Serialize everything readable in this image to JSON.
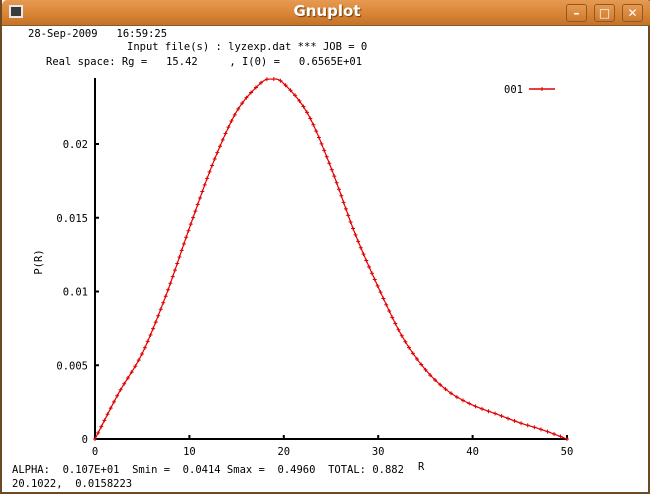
{
  "window": {
    "title": "Gnuplot",
    "buttons": {
      "minimize": "–",
      "maximize": "□",
      "close": "✕"
    }
  },
  "header": {
    "line1": "28-Sep-2009   16:59:25",
    "line2": "Input file(s) : lyzexp.dat *** JOB = 0",
    "line3": "Real space: Rg =   15.42     , I(0) =   0.6565E+01"
  },
  "footer": {
    "line1": "ALPHA:  0.107E+01  Smin =  0.0414 Smax =  0.4960  TOTAL: 0.882",
    "coords": "20.1022,  0.0158223"
  },
  "colors": {
    "series": "#e00000",
    "axis": "#000000",
    "titlebar": "#d98535"
  },
  "chart_data": {
    "type": "line",
    "title": "",
    "xlabel": "R",
    "ylabel": "P(R)",
    "xlim": [
      0,
      50
    ],
    "ylim": [
      0,
      0.025
    ],
    "xticks": [
      "0",
      "10",
      "20",
      "30",
      "40",
      "50"
    ],
    "yticks": [
      "0",
      "0.005",
      "0.01",
      "0.015",
      "0.02"
    ],
    "grid": false,
    "legend_position": "top-right",
    "series": [
      {
        "name": "001",
        "marker": "+",
        "x": [
          0,
          2.5,
          5,
          7.5,
          10,
          12.5,
          15,
          17.5,
          18.75,
          20,
          22.5,
          25,
          27.5,
          30,
          32.5,
          35,
          37.5,
          40,
          42.5,
          45,
          47.5,
          50
        ],
        "values": [
          0,
          0.0031,
          0.0058,
          0.0097,
          0.0143,
          0.0187,
          0.0222,
          0.0241,
          0.0244,
          0.0241,
          0.0221,
          0.0184,
          0.014,
          0.0103,
          0.007,
          0.0047,
          0.0032,
          0.0023,
          0.0017,
          0.0011,
          0.0006,
          0
        ]
      }
    ]
  }
}
